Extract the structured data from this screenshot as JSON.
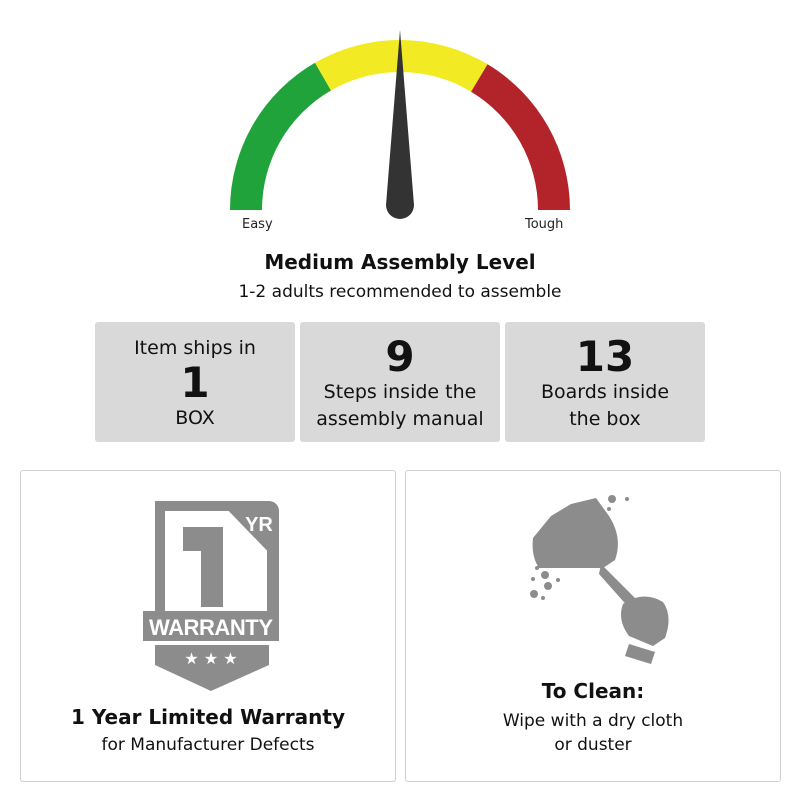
{
  "gauge": {
    "min_label": "Easy",
    "max_label": "Tough",
    "level_fraction": 0.5,
    "colors": {
      "easy": "#1fa33a",
      "medium": "#f2ea22",
      "tough": "#b3232a",
      "needle": "#333333"
    }
  },
  "assembly": {
    "title": "Medium Assembly Level",
    "subtitle": "1-2 adults recommended to assemble"
  },
  "stats": [
    {
      "top": "Item ships in",
      "number": "1",
      "bottom": "BOX"
    },
    {
      "number": "9",
      "line1": "Steps inside the",
      "line2": "assembly manual"
    },
    {
      "number": "13",
      "line1": "Boards inside",
      "line2": "the box"
    }
  ],
  "warranty": {
    "badge_number": "1",
    "badge_unit": "YR",
    "badge_text": "WARRANTY",
    "title": "1 Year Limited Warranty",
    "subtitle": "for Manufacturer Defects"
  },
  "cleaning": {
    "title": "To Clean:",
    "line1": "Wipe with a dry cloth",
    "line2": "or duster"
  },
  "icon_color": "#8c8c8c"
}
